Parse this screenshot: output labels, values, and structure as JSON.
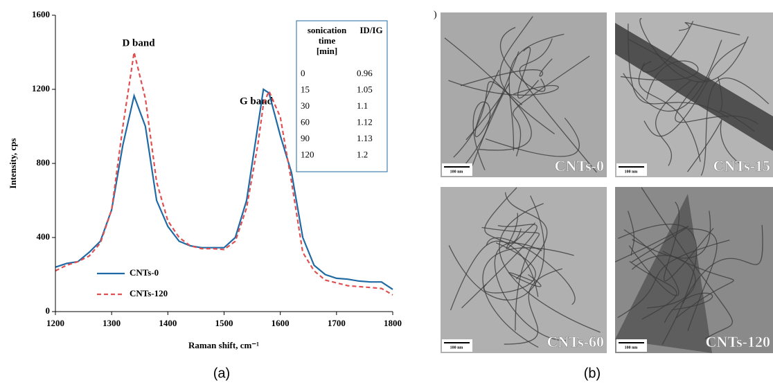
{
  "chart_data": {
    "type": "line",
    "xlabel": "Raman shift, cm⁻¹",
    "ylabel": "Intensity, cps",
    "annotations": [
      "D band",
      "G band"
    ],
    "x": [
      1200,
      1220,
      1240,
      1260,
      1280,
      1300,
      1320,
      1340,
      1360,
      1380,
      1400,
      1420,
      1440,
      1460,
      1480,
      1500,
      1520,
      1540,
      1560,
      1570,
      1580,
      1600,
      1620,
      1640,
      1660,
      1680,
      1700,
      1720,
      1740,
      1760,
      1780,
      1800
    ],
    "series": [
      {
        "name": "CNTs-0",
        "color": "#1f6aa5",
        "dash": false,
        "values": [
          240,
          260,
          270,
          320,
          380,
          550,
          900,
          1165,
          1000,
          600,
          460,
          380,
          355,
          345,
          345,
          345,
          400,
          600,
          1000,
          1200,
          1180,
          950,
          750,
          400,
          250,
          200,
          180,
          175,
          165,
          160,
          160,
          120
        ]
      },
      {
        "name": "CNTs-120",
        "color": "#e05050",
        "dash": true,
        "values": [
          220,
          250,
          270,
          300,
          370,
          550,
          1000,
          1400,
          1150,
          700,
          490,
          400,
          355,
          340,
          340,
          335,
          380,
          560,
          900,
          1120,
          1190,
          1050,
          700,
          320,
          220,
          170,
          155,
          140,
          135,
          130,
          125,
          90
        ]
      }
    ],
    "xlim": [
      1200,
      1800
    ],
    "xticks": [
      1200,
      1300,
      1400,
      1500,
      1600,
      1700,
      1800
    ],
    "ylim": [
      0,
      1600
    ],
    "yticks": [
      0,
      400,
      800,
      1200,
      1600
    ],
    "legend": "lower left"
  },
  "table": {
    "columns": [
      "sonication time [min]",
      "ID/IG"
    ],
    "rows": [
      [
        0,
        0.96
      ],
      [
        15,
        1.05
      ],
      [
        30,
        1.1
      ],
      [
        60,
        1.12
      ],
      [
        90,
        1.13
      ],
      [
        120,
        1.2
      ]
    ]
  },
  "images": [
    {
      "label": "CNTs-0",
      "scale": "100 nm"
    },
    {
      "label": "CNTs-15",
      "scale": "100 nm"
    },
    {
      "label": "CNTs-60",
      "scale": "100 nm"
    },
    {
      "label": "CNTs-120",
      "scale": "100 nm"
    }
  ],
  "panel_b_corner": ")",
  "captions": [
    "(a)",
    "(b)"
  ]
}
